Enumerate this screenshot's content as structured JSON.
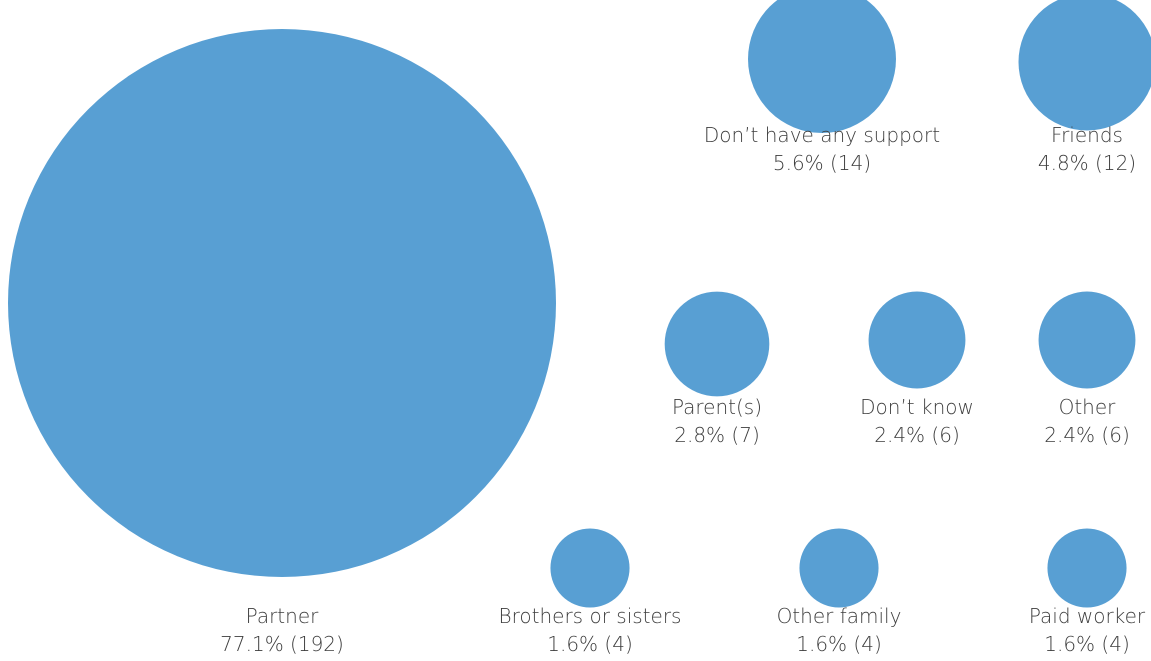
{
  "chart_data": {
    "type": "bubble",
    "title": "",
    "color": "#589fd3",
    "items": [
      {
        "label": "Partner",
        "percent": 77.1,
        "count": 192,
        "value_text": "77.1% (192)"
      },
      {
        "label": "Don’t have any support",
        "percent": 5.6,
        "count": 14,
        "value_text": "5.6% (14)"
      },
      {
        "label": "Friends",
        "percent": 4.8,
        "count": 12,
        "value_text": "4.8% (12)"
      },
      {
        "label": "Parent(s)",
        "percent": 2.8,
        "count": 7,
        "value_text": "2.8% (7)"
      },
      {
        "label": "Don’t know",
        "percent": 2.4,
        "count": 6,
        "value_text": "2.4% (6)"
      },
      {
        "label": "Other",
        "percent": 2.4,
        "count": 6,
        "value_text": "2.4% (6)"
      },
      {
        "label": "Brothers or sisters",
        "percent": 1.6,
        "count": 4,
        "value_text": "1.6% (4)"
      },
      {
        "label": "Other family",
        "percent": 1.6,
        "count": 4,
        "value_text": "1.6% (4)"
      },
      {
        "label": "Paid worker",
        "percent": 1.6,
        "count": 4,
        "value_text": "1.6% (4)"
      }
    ]
  }
}
